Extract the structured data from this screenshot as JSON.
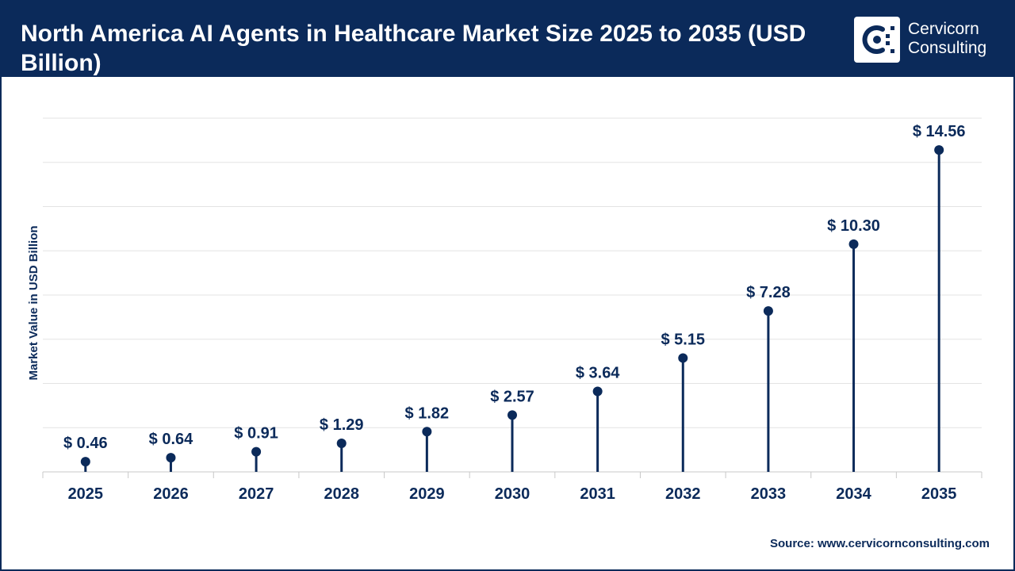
{
  "header": {
    "title": "North America AI Agents in Healthcare Market Size 2025 to 2035 (USD Billion)",
    "brand_line1": "Cervicorn",
    "brand_line2": "Consulting",
    "logo_icon": "cervicorn-logo-icon"
  },
  "colors": {
    "primary": "#0b2a5a",
    "background": "#ffffff",
    "grid": "#e3e3e3"
  },
  "source": "Source: www.cervicornconsulting.com",
  "chart_data": {
    "type": "lollipop",
    "title": "North America AI Agents in Healthcare Market Size 2025 to 2035 (USD Billion)",
    "xlabel": "",
    "ylabel": "Market Value in USD Billion",
    "value_prefix": "$ ",
    "categories": [
      "2025",
      "2026",
      "2027",
      "2028",
      "2029",
      "2030",
      "2031",
      "2032",
      "2033",
      "2034",
      "2035"
    ],
    "values": [
      0.46,
      0.64,
      0.91,
      1.29,
      1.82,
      2.57,
      3.64,
      5.15,
      7.28,
      10.3,
      14.56
    ],
    "value_labels": [
      "$ 0.46",
      "$ 0.64",
      "$ 0.91",
      "$ 1.29",
      "$ 1.82",
      "$ 2.57",
      "$ 3.64",
      "$ 5.15",
      "$ 7.28",
      "$ 10.30",
      "$ 14.56"
    ],
    "ylim": [
      0,
      16
    ],
    "grid": true,
    "legend": "none"
  }
}
